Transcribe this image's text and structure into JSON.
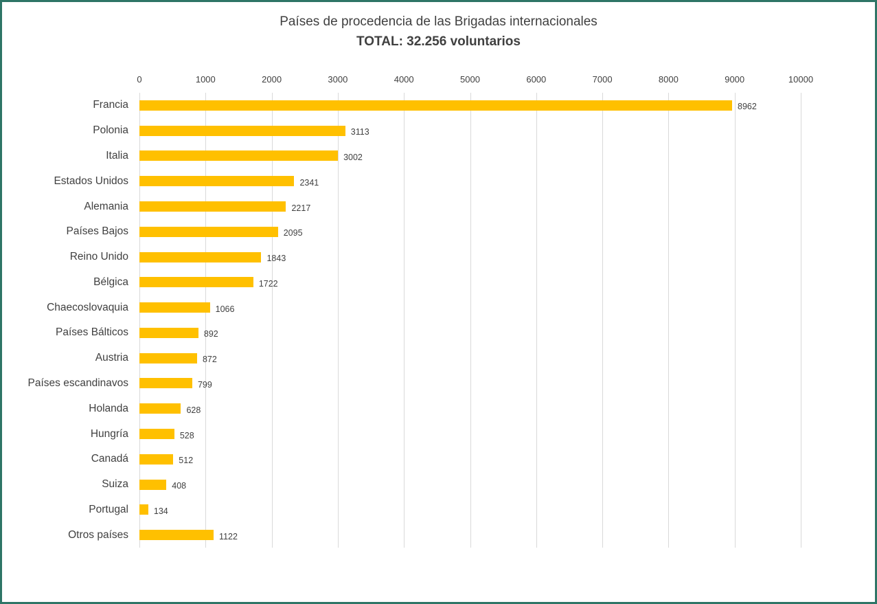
{
  "chart_data": {
    "type": "bar",
    "orientation": "horizontal",
    "title": "Países de procedencia de las Brigadas internacionales",
    "subtitle": "TOTAL: 32.256 voluntarios",
    "categories": [
      "Francia",
      "Polonia",
      "Italia",
      "Estados Unidos",
      "Alemania",
      "Países Bajos",
      "Reino Unido",
      "Bélgica",
      "Chaecoslovaquia",
      "Países Bálticos",
      "Austria",
      "Países escandinavos",
      "Holanda",
      "Hungría",
      "Canadá",
      "Suiza",
      "Portugal",
      "Otros países"
    ],
    "values": [
      8962,
      3113,
      3002,
      2341,
      2217,
      2095,
      1843,
      1722,
      1066,
      892,
      872,
      799,
      628,
      528,
      512,
      408,
      134,
      1122
    ],
    "data_labels": [
      "8962",
      "3113",
      "3002",
      "2341",
      "2217",
      "2095",
      "1843",
      "1722",
      "1066",
      "892",
      "872",
      "799",
      "628",
      "528",
      "512",
      "408",
      "134",
      "1122"
    ],
    "xlabel": "",
    "ylabel": "",
    "xlim": [
      0,
      10000
    ],
    "xticks": [
      0,
      1000,
      2000,
      3000,
      4000,
      5000,
      6000,
      7000,
      8000,
      9000,
      10000
    ],
    "grid": true,
    "legend": false,
    "axis_position": "top"
  },
  "colors": {
    "bar": "#FFC000",
    "text": "#404040",
    "gridline": "#d9d9d9",
    "frame_border": "#2e7566"
  }
}
